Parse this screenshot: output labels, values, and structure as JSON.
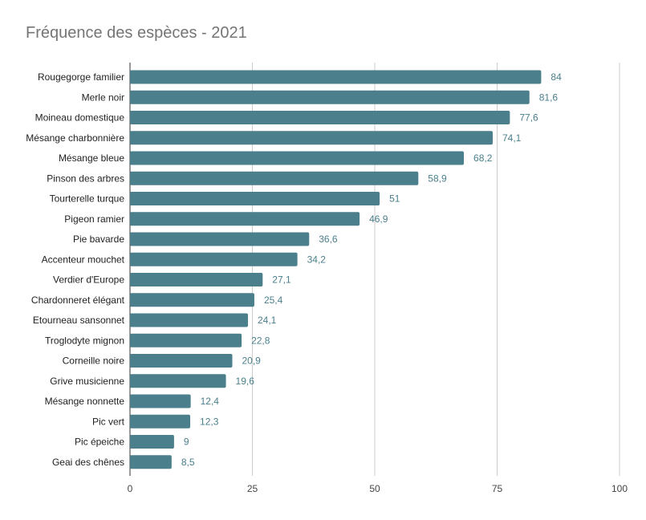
{
  "chart_data": {
    "type": "bar",
    "orientation": "horizontal",
    "title": "Fréquence des espèces - 2021",
    "xlabel": "",
    "ylabel": "",
    "categories": [
      "Rougegorge familier",
      "Merle noir",
      "Moineau domestique",
      "Mésange charbonnière",
      "Mésange bleue",
      "Pinson des arbres",
      "Tourterelle turque",
      "Pigeon ramier",
      "Pie bavarde",
      "Accenteur mouchet",
      "Verdier d'Europe",
      "Chardonneret élégant",
      "Etourneau sansonnet",
      "Troglodyte mignon",
      "Corneille noire",
      "Grive musicienne",
      "Mésange nonnette",
      "Pic vert",
      "Pic épeiche",
      "Geai des chênes"
    ],
    "values": [
      84,
      81.6,
      77.6,
      74.1,
      68.2,
      58.9,
      51,
      46.9,
      36.6,
      34.2,
      27.1,
      25.4,
      24.1,
      22.8,
      20.9,
      19.6,
      12.4,
      12.3,
      9,
      8.5
    ],
    "value_labels": [
      "84",
      "81,6",
      "77,6",
      "74,1",
      "68,2",
      "58,9",
      "51",
      "46,9",
      "36,6",
      "34,2",
      "27,1",
      "25,4",
      "24,1",
      "22,8",
      "20,9",
      "19,6",
      "12,4",
      "12,3",
      "9",
      "8,5"
    ],
    "xlim": [
      0,
      100
    ],
    "xticks": [
      0,
      25,
      50,
      75,
      100
    ],
    "xtick_labels": [
      "0",
      "25",
      "50",
      "75",
      "100"
    ],
    "grid": "vertical",
    "legend": "none",
    "bar_color": "#4a7f8b"
  }
}
